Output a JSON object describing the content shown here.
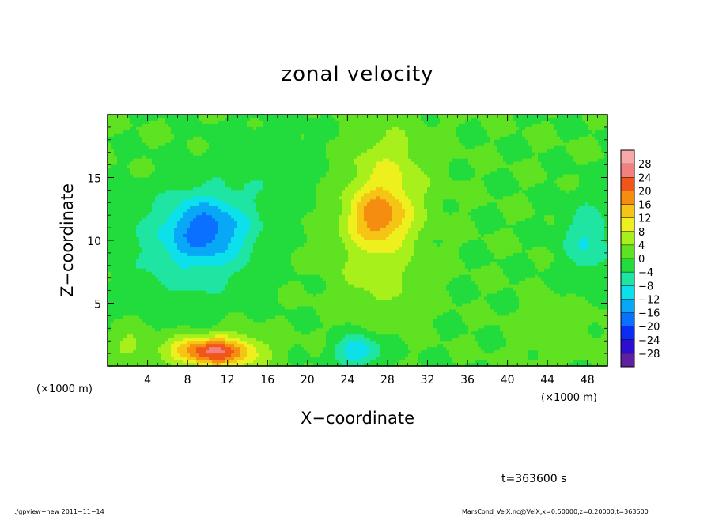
{
  "chart_data": {
    "type": "heatmap",
    "title": "zonal velocity",
    "xlabel": "X−coordinate",
    "ylabel": "Z−coordinate",
    "x_units": "(×1000 m)",
    "y_units": "(×1000 m)",
    "xlim": [
      0,
      50
    ],
    "ylim": [
      0,
      20
    ],
    "x_ticks": [
      4,
      8,
      12,
      16,
      20,
      24,
      28,
      32,
      36,
      40,
      44,
      48
    ],
    "y_ticks": [
      5,
      10,
      15
    ],
    "colorbar": {
      "levels": [
        28,
        24,
        20,
        16,
        12,
        8,
        4,
        0,
        -4,
        -8,
        -12,
        -16,
        -20,
        -24,
        -28
      ],
      "labels": [
        "28",
        "24",
        "20",
        "16",
        "12",
        "8",
        "4",
        "0",
        "−4",
        "−8",
        "−12",
        "−16",
        "−20",
        "−24",
        "−28"
      ]
    },
    "features": [
      {
        "x": 10,
        "z": 1.2,
        "value": 18,
        "sx": 4.0,
        "sz": 1.1
      },
      {
        "x": 12,
        "z": 1.0,
        "value": 8,
        "sx": 4,
        "sz": 1.6
      },
      {
        "x": 10,
        "z": 11.0,
        "value": -14,
        "sx": 4.2,
        "sz": 2.6
      },
      {
        "x": 8,
        "z": 9.0,
        "value": -6,
        "sx": 6,
        "sz": 4.5
      },
      {
        "x": 27,
        "z": 11.8,
        "value": 14,
        "sx": 3.2,
        "sz": 2.2
      },
      {
        "x": 28,
        "z": 15.0,
        "value": 8,
        "sx": 4,
        "sz": 4
      },
      {
        "x": 27,
        "z": 7.5,
        "value": 6,
        "sx": 4,
        "sz": 3.5
      },
      {
        "x": 25,
        "z": 1.2,
        "value": -12,
        "sx": 2.2,
        "sz": 1.2
      },
      {
        "x": 48,
        "z": 10,
        "value": -8,
        "sx": 2.5,
        "sz": 3
      },
      {
        "x": 2,
        "z": 1.8,
        "value": 5,
        "sx": 2,
        "sz": 1.2
      },
      {
        "x": 45,
        "z": 2.5,
        "value": 2,
        "sx": 4,
        "sz": 2.5
      },
      {
        "x": 16,
        "z": 16,
        "value": -3,
        "sx": 5,
        "sz": 3
      }
    ]
  },
  "annotation": {
    "time": "t=363600 s"
  },
  "footer": {
    "left": "./gpview−new   2011−11−14",
    "right": "MarsCond_VelX.nc@VelX,x=0:50000,z=0:20000,t=363600"
  }
}
